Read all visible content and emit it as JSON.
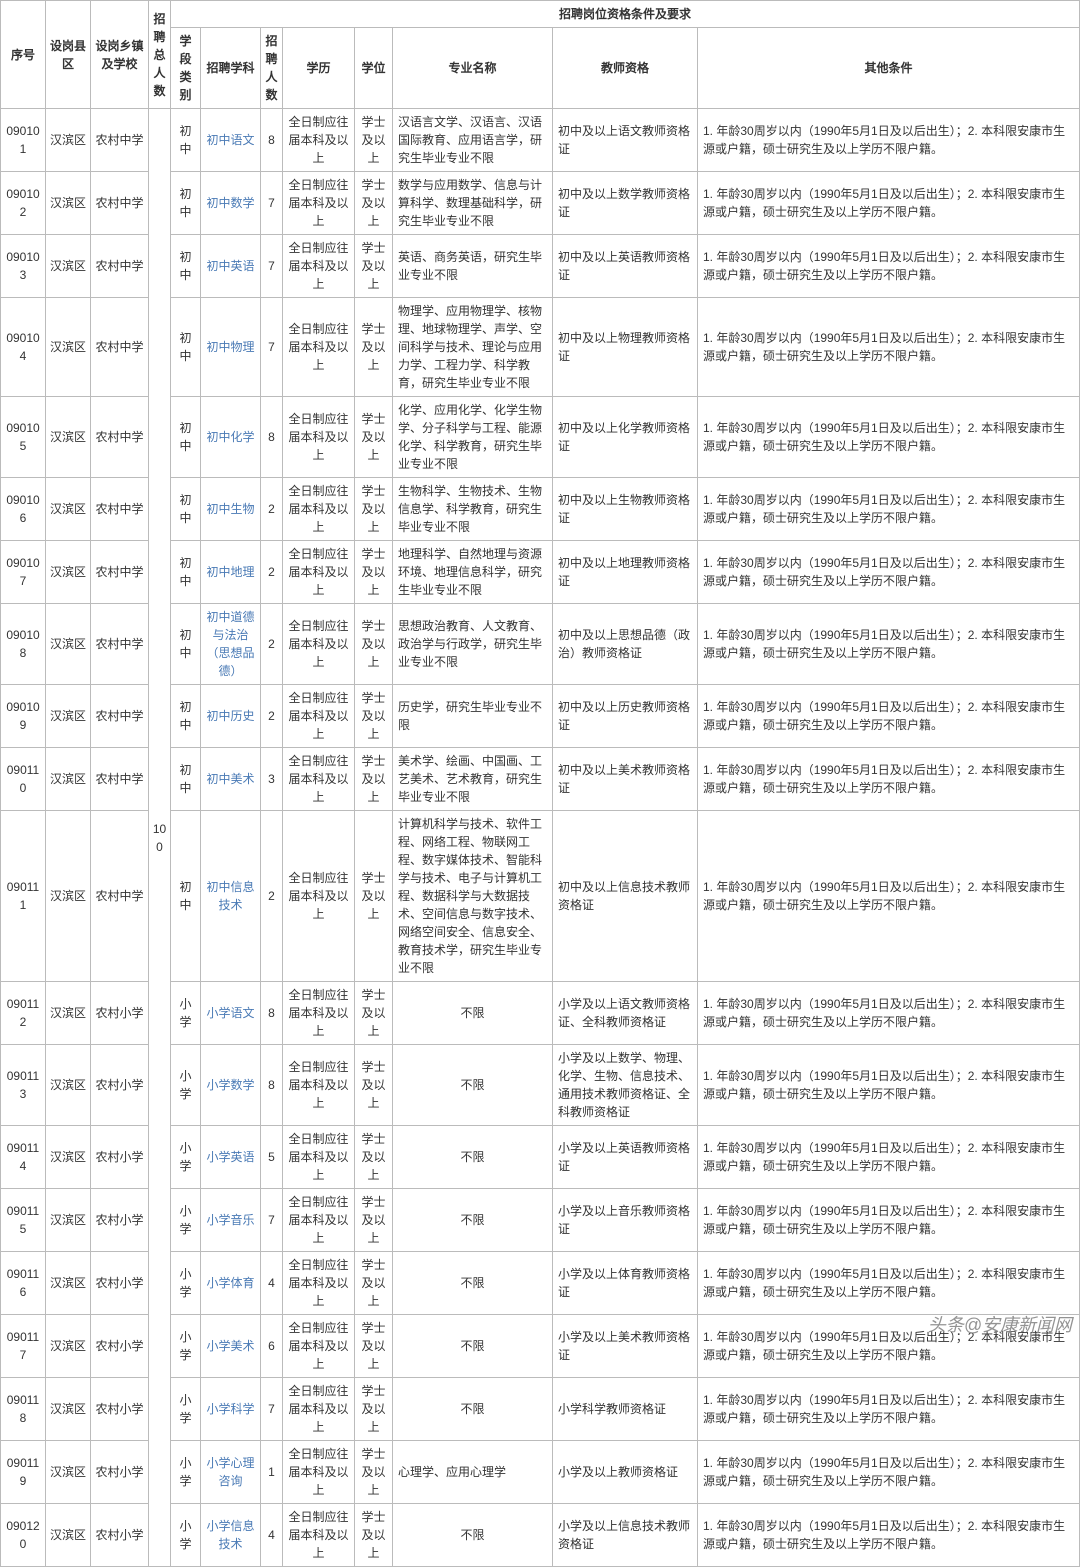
{
  "headers": {
    "seq": "序号",
    "district": "设岗县区",
    "school": "设岗乡镇及学校",
    "total": "招聘总人数",
    "group": "招聘岗位资格条件及要求",
    "stage": "学段类别",
    "subject": "招聘学科",
    "count": "招聘人数",
    "edu": "学历",
    "degree": "学位",
    "major": "专业名称",
    "cert": "教师资格",
    "other": "其他条件"
  },
  "total_count": "100",
  "edu_text": "全日制应往届本科及以上",
  "degree_text": "学士及以上",
  "other_std": "1. 年龄30周岁以内（1990年5月1日及以后出生）；2. 本科限安康市生源或户籍，硕士研究生及以上学历不限户籍。",
  "other_last": "1. 年龄30周岁以内（1990年5月1日及以后出生）；2. 本科限安康市生源或户籍，硕士研究生及以上学历不限户籍。",
  "watermark": "头条@安康新闻网",
  "rows": [
    {
      "seq": "090101",
      "district": "汉滨区",
      "school": "农村中学",
      "stage": "初中",
      "subject": "初中语文",
      "count": "8",
      "major": "汉语言文学、汉语言、汉语国际教育、应用语言学，研究生毕业专业不限",
      "cert": "初中及以上语文教师资格证"
    },
    {
      "seq": "090102",
      "district": "汉滨区",
      "school": "农村中学",
      "stage": "初中",
      "subject": "初中数学",
      "count": "7",
      "major": "数学与应用数学、信息与计算科学、数理基础科学，研究生毕业专业不限",
      "cert": "初中及以上数学教师资格证"
    },
    {
      "seq": "090103",
      "district": "汉滨区",
      "school": "农村中学",
      "stage": "初中",
      "subject": "初中英语",
      "count": "7",
      "major": "英语、商务英语，研究生毕业专业不限",
      "cert": "初中及以上英语教师资格证"
    },
    {
      "seq": "090104",
      "district": "汉滨区",
      "school": "农村中学",
      "stage": "初中",
      "subject": "初中物理",
      "count": "7",
      "major": "物理学、应用物理学、核物理、地球物理学、声学、空间科学与技术、理论与应用力学、工程力学、科学教育，研究生毕业专业不限",
      "cert": "初中及以上物理教师资格证"
    },
    {
      "seq": "090105",
      "district": "汉滨区",
      "school": "农村中学",
      "stage": "初中",
      "subject": "初中化学",
      "count": "8",
      "major": "化学、应用化学、化学生物学、分子科学与工程、能源化学、科学教育，研究生毕业专业不限",
      "cert": "初中及以上化学教师资格证"
    },
    {
      "seq": "090106",
      "district": "汉滨区",
      "school": "农村中学",
      "stage": "初中",
      "subject": "初中生物",
      "count": "2",
      "major": "生物科学、生物技术、生物信息学、科学教育，研究生毕业专业不限",
      "cert": "初中及以上生物教师资格证"
    },
    {
      "seq": "090107",
      "district": "汉滨区",
      "school": "农村中学",
      "stage": "初中",
      "subject": "初中地理",
      "count": "2",
      "major": "地理科学、自然地理与资源环境、地理信息科学，研究生毕业专业不限",
      "cert": "初中及以上地理教师资格证"
    },
    {
      "seq": "090108",
      "district": "汉滨区",
      "school": "农村中学",
      "stage": "初中",
      "subject": "初中道德与法治（思想品德）",
      "count": "2",
      "major": "思想政治教育、人文教育、政治学与行政学，研究生毕业专业不限",
      "cert": "初中及以上思想品德（政治）教师资格证"
    },
    {
      "seq": "090109",
      "district": "汉滨区",
      "school": "农村中学",
      "stage": "初中",
      "subject": "初中历史",
      "count": "2",
      "major": "历史学，研究生毕业专业不限",
      "cert": "初中及以上历史教师资格证"
    },
    {
      "seq": "090110",
      "district": "汉滨区",
      "school": "农村中学",
      "stage": "初中",
      "subject": "初中美术",
      "count": "3",
      "major": "美术学、绘画、中国画、工艺美术、艺术教育，研究生毕业专业不限",
      "cert": "初中及以上美术教师资格证"
    },
    {
      "seq": "090111",
      "district": "汉滨区",
      "school": "农村中学",
      "stage": "初中",
      "subject": "初中信息技术",
      "count": "2",
      "major": "计算机科学与技术、软件工程、网络工程、物联网工程、数字媒体技术、智能科学与技术、电子与计算机工程、数据科学与大数据技术、空间信息与数字技术、网络空间安全、信息安全、教育技术学，研究生毕业专业不限",
      "cert": "初中及以上信息技术教师资格证"
    },
    {
      "seq": "090112",
      "district": "汉滨区",
      "school": "农村小学",
      "stage": "小学",
      "subject": "小学语文",
      "count": "8",
      "major": "不限",
      "cert": "小学及以上语文教师资格证、全科教师资格证"
    },
    {
      "seq": "090113",
      "district": "汉滨区",
      "school": "农村小学",
      "stage": "小学",
      "subject": "小学数学",
      "count": "8",
      "major": "不限",
      "cert": "小学及以上数学、物理、化学、生物、信息技术、通用技术教师资格证、全科教师资格证"
    },
    {
      "seq": "090114",
      "district": "汉滨区",
      "school": "农村小学",
      "stage": "小学",
      "subject": "小学英语",
      "count": "5",
      "major": "不限",
      "cert": "小学及以上英语教师资格证"
    },
    {
      "seq": "090115",
      "district": "汉滨区",
      "school": "农村小学",
      "stage": "小学",
      "subject": "小学音乐",
      "count": "7",
      "major": "不限",
      "cert": "小学及以上音乐教师资格证"
    },
    {
      "seq": "090116",
      "district": "汉滨区",
      "school": "农村小学",
      "stage": "小学",
      "subject": "小学体育",
      "count": "4",
      "major": "不限",
      "cert": "小学及以上体育教师资格证"
    },
    {
      "seq": "090117",
      "district": "汉滨区",
      "school": "农村小学",
      "stage": "小学",
      "subject": "小学美术",
      "count": "6",
      "major": "不限",
      "cert": "小学及以上美术教师资格证"
    },
    {
      "seq": "090118",
      "district": "汉滨区",
      "school": "农村小学",
      "stage": "小学",
      "subject": "小学科学",
      "count": "7",
      "major": "不限",
      "cert": "小学科学教师资格证"
    },
    {
      "seq": "090119",
      "district": "汉滨区",
      "school": "农村小学",
      "stage": "小学",
      "subject": "小学心理咨询",
      "count": "1",
      "major": "心理学、应用心理学",
      "cert": "小学及以上教师资格证"
    },
    {
      "seq": "090120",
      "district": "汉滨区",
      "school": "农村小学",
      "stage": "小学",
      "subject": "小学信息技术",
      "count": "4",
      "major": "不限",
      "cert": "小学及以上信息技术教师资格证"
    }
  ]
}
